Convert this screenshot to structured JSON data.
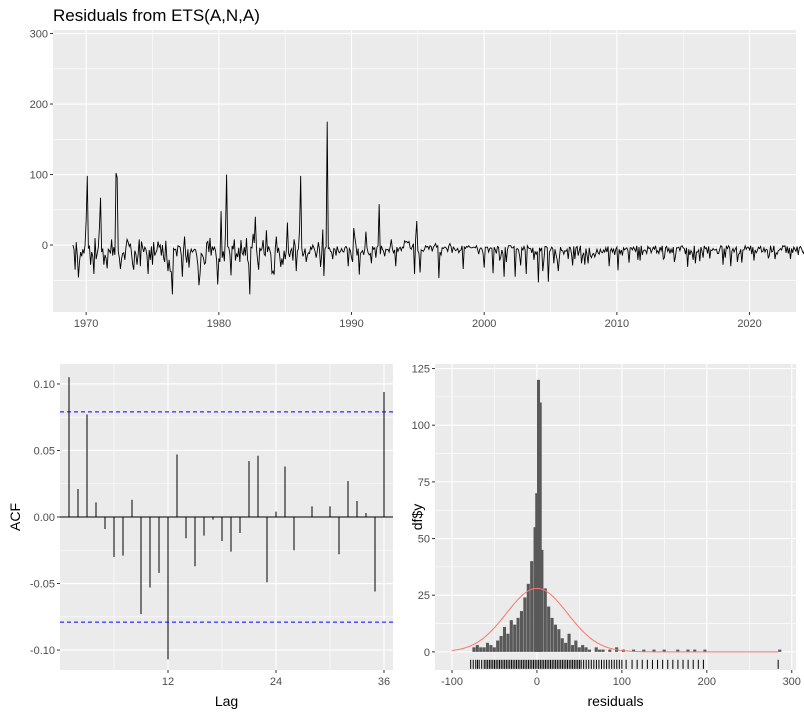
{
  "title": "Residuals from ETS(A,N,A)",
  "chart_data": [
    {
      "type": "line",
      "title": "Residuals from ETS(A,N,A)",
      "xlabel": "",
      "ylabel": "",
      "xlim": [
        1967.5,
        2023.5
      ],
      "ylim": [
        -95,
        305
      ],
      "xticks": [
        1970,
        1980,
        1990,
        2000,
        2010,
        2020
      ],
      "yticks": [
        0,
        100,
        200,
        300
      ],
      "grid": true,
      "x_start": 1969.0,
      "x_step": 0.0833333,
      "series": [
        {
          "values": [
            0,
            -6,
            -35,
            4,
            -15,
            -46,
            -23,
            -10,
            -16,
            -6,
            -12,
            0,
            35,
            98,
            -5,
            -2,
            -28,
            -10,
            -16,
            -41,
            10,
            -20,
            -12,
            -3,
            25,
            67,
            -10,
            -5,
            -28,
            -14,
            -19,
            -33,
            -6,
            -8,
            -12,
            8,
            -15,
            -3,
            -14,
            102,
            96,
            -9,
            -18,
            -34,
            -20,
            -12,
            -11,
            -21,
            -3,
            8,
            4,
            -2,
            2,
            -11,
            -27,
            -35,
            -8,
            -13,
            -28,
            -13,
            8,
            -30,
            5,
            -3,
            -10,
            -3,
            -6,
            -15,
            -41,
            -7,
            -21,
            -2,
            -28,
            4,
            -15,
            -11,
            -7,
            5,
            -3,
            0,
            -15,
            0,
            -18,
            -24,
            6,
            -19,
            -37,
            -21,
            -37,
            -38,
            -70,
            -5,
            -7,
            -6,
            -16,
            -1,
            -2,
            -3,
            -14,
            -45,
            -8,
            12,
            -15,
            -25,
            -6,
            -32,
            -12,
            -6,
            -10,
            -8,
            -6,
            -7,
            -15,
            -28,
            -57,
            -41,
            -12,
            -14,
            -18,
            -27,
            -25,
            3,
            5,
            -10,
            10,
            -15,
            -2,
            -7,
            -3,
            -8,
            -22,
            -56,
            -19,
            -24,
            48,
            -18,
            -9,
            -23,
            17,
            100,
            -2,
            -4,
            -13,
            -43,
            -1,
            -6,
            8,
            -22,
            -12,
            -17,
            -4,
            -24,
            7,
            -11,
            -14,
            -3,
            -15,
            10,
            -21,
            -27,
            -70,
            -3,
            -4,
            16,
            3,
            40,
            -4,
            -21,
            -35,
            -4,
            -8,
            -5,
            7,
            -13,
            -15,
            21,
            -10,
            -2,
            -7,
            -13,
            -40,
            -37,
            -42,
            -6,
            12,
            -11,
            -4,
            -15,
            -31,
            -19,
            -28,
            -8,
            -20,
            -8,
            32,
            -11,
            -17,
            -8,
            -5,
            -22,
            8,
            -1,
            -37,
            -9,
            -5,
            22,
            98,
            -4,
            -16,
            -12,
            -5,
            -24,
            -15,
            -11,
            -12,
            -3,
            -6,
            0,
            -4,
            -9,
            -18,
            -9,
            4,
            -6,
            -31,
            -15,
            22,
            -44,
            -5,
            -3,
            175,
            -5,
            -4,
            -9,
            -10,
            -20,
            -5,
            -6,
            -15,
            -2,
            -8,
            -11,
            -9,
            -5,
            -9,
            -10,
            -4,
            -2,
            -5,
            -30,
            -5,
            -8,
            -18,
            -24,
            24,
            11,
            0,
            -15,
            -5,
            -42,
            -12,
            -10,
            -8,
            -14,
            -6,
            19,
            -4,
            -11,
            -14,
            -12,
            -26,
            -2,
            -6,
            -4,
            -18,
            -3,
            -1,
            58,
            -13,
            -1,
            -6,
            -9,
            -16,
            -6,
            -7,
            -6,
            -10,
            -2,
            8,
            -6,
            -11,
            -7,
            -30,
            -3,
            -9,
            -5,
            -3,
            -8,
            -3,
            -4,
            6,
            4,
            5,
            3,
            5,
            -4,
            -6,
            -2,
            2,
            -41,
            9,
            34,
            -8,
            -12,
            -39,
            -7,
            -8,
            -9,
            -6,
            -1,
            -3,
            -2,
            -6,
            -1,
            -2,
            -9,
            -3,
            -1,
            2,
            -3,
            -1,
            -47,
            -10,
            -14,
            -4,
            -5,
            -3,
            -3,
            -5,
            -9,
            -1,
            2,
            -2,
            -11,
            -3,
            -5,
            -8,
            -7,
            -5,
            -11,
            -8,
            -7,
            -1,
            -34,
            -3,
            -5,
            -2,
            -3,
            -1,
            -3,
            -4,
            -4,
            -3,
            -3,
            -4,
            -1,
            -6,
            -13,
            -6,
            -4,
            -6,
            -12,
            -32,
            -3,
            -3,
            -3,
            -10,
            -5,
            -4,
            -5,
            -40,
            -3,
            -7,
            -12,
            -2,
            -3,
            -22,
            -17,
            -7,
            -13,
            -45,
            -3,
            -24,
            -7,
            -1,
            -1,
            -1,
            -4,
            -4,
            -2,
            -45,
            -6,
            -5,
            -7,
            -15,
            -29,
            -4,
            -7,
            -2,
            -7,
            -41,
            -1,
            -4,
            -5,
            -5,
            -11,
            -4,
            -21,
            -9,
            -13,
            -9,
            -53,
            -4,
            -8,
            -4,
            -37,
            -21,
            -2,
            -2,
            -4,
            -52,
            -10,
            -7,
            -3,
            -5,
            -26,
            -6,
            -14,
            -21,
            -37,
            -18,
            -3,
            -8,
            -8,
            -13,
            -8,
            -9,
            -6,
            -20,
            -3,
            -4,
            -13,
            -29,
            -2,
            -20,
            -4,
            -2,
            -15,
            -8,
            -1,
            -26,
            -15,
            -11,
            -28,
            -5,
            -14,
            -26,
            -4,
            -15,
            -18,
            -13,
            -12,
            -17,
            -12,
            -6,
            -11,
            -13,
            -6,
            -10,
            -11,
            -7,
            -10,
            -4,
            -10,
            -2,
            -30,
            -9,
            -5,
            -10,
            -5,
            -14,
            -6,
            -3,
            -36,
            -6,
            -12,
            -7,
            -15,
            -4,
            -7,
            -5,
            -4,
            -8,
            -25,
            -4,
            -4,
            -7,
            -3,
            -6,
            -9,
            -1,
            -21,
            -3,
            -22,
            -1,
            -14,
            -8,
            -7,
            -8,
            -12,
            -2,
            -5,
            -4,
            -11,
            -7,
            -3,
            -6,
            -1,
            -11,
            -8,
            -12,
            -3,
            -8,
            -1,
            -20,
            -18,
            -4,
            -2,
            -9,
            -5,
            -12,
            -6,
            -11,
            -3,
            -24,
            -16,
            -4,
            -4,
            -3,
            -8,
            -2,
            -1,
            -4,
            -5,
            -13,
            -4,
            -31,
            -6,
            -14,
            -8,
            -11,
            -21,
            -1,
            -26,
            -10,
            -10,
            -7,
            -23,
            -3,
            -9,
            -18,
            -1,
            -5,
            -4,
            -12,
            -2,
            -19,
            -7,
            -8,
            -5,
            -7,
            -7,
            -6,
            -12,
            -12,
            -6,
            -1,
            -2,
            -28,
            -5,
            -18,
            -2,
            -5,
            -1,
            -4,
            -30,
            -9,
            -5,
            -10,
            -6,
            -3,
            -24,
            -13,
            -12,
            -6,
            -25,
            -7,
            -7,
            -1,
            -6,
            -3,
            -3,
            -7,
            -1,
            -13,
            -3,
            -22,
            -7,
            -11,
            -8,
            -3,
            -5,
            -2,
            -10,
            -9,
            -4,
            -10,
            -6,
            -7,
            -19,
            -14,
            -1,
            -10,
            -9,
            -1,
            -20,
            -11,
            -13,
            -8,
            -7,
            -5,
            -7,
            -1,
            -2,
            -1,
            -11,
            -2,
            -12,
            -4,
            -20,
            -5,
            -11,
            -3,
            -6,
            -9,
            -2,
            -14,
            -4,
            -2,
            -5,
            -10,
            -12,
            -4,
            -3,
            -13,
            -1,
            -2,
            -14,
            -3,
            -3,
            -7,
            -14,
            -8,
            -20,
            -9,
            -5,
            -2,
            -9,
            -4,
            -7,
            -15,
            -3,
            -2,
            -7,
            -2,
            -3,
            -10,
            -14,
            -2,
            -5,
            -8,
            -5,
            -4,
            -4,
            -9,
            -10,
            -4,
            -2,
            -8,
            -3,
            -5,
            -16,
            -4,
            -3,
            -1,
            -4,
            -11,
            -4,
            -2
          ]
        }
      ]
    },
    {
      "type": "bar",
      "xlabel": "Lag",
      "ylabel": "ACF",
      "xlim": [
        0,
        37
      ],
      "ylim": [
        -0.115,
        0.115
      ],
      "xticks": [
        12,
        24,
        36
      ],
      "yticks": [
        -0.1,
        -0.05,
        0.0,
        0.05,
        0.1
      ],
      "conf_limit": 0.079,
      "grid": true,
      "lags": [
        1,
        2,
        3,
        4,
        5,
        6,
        7,
        8,
        9,
        10,
        11,
        12,
        13,
        14,
        15,
        16,
        17,
        18,
        19,
        20,
        21,
        22,
        23,
        24,
        25,
        26,
        27,
        28,
        29,
        30,
        31,
        32,
        33,
        34,
        35,
        36
      ],
      "values": [
        0.105,
        0.021,
        0.077,
        0.011,
        -0.009,
        -0.03,
        -0.029,
        0.013,
        -0.073,
        -0.053,
        -0.042,
        -0.107,
        0.047,
        -0.016,
        -0.037,
        -0.014,
        -0.002,
        -0.018,
        -0.026,
        -0.012,
        0.042,
        0.046,
        -0.049,
        0.004,
        0.038,
        -0.025,
        0.0,
        0.008,
        0.0,
        0.008,
        -0.028,
        0.027,
        0.012,
        0.003,
        -0.056,
        0.094
      ]
    },
    {
      "type": "bar",
      "xlabel": "residuals",
      "ylabel": "df$y",
      "xlim": [
        -120,
        305
      ],
      "ylim": [
        -8,
        127
      ],
      "xticks": [
        -100,
        0,
        100,
        200,
        300
      ],
      "yticks": [
        0,
        25,
        50,
        75,
        100,
        125
      ],
      "bin_width": 4,
      "grid": true,
      "bins": [
        [
          -76,
          2
        ],
        [
          -72,
          3
        ],
        [
          -68,
          2
        ],
        [
          -64,
          2
        ],
        [
          -60,
          4
        ],
        [
          -56,
          3
        ],
        [
          -52,
          2
        ],
        [
          -48,
          5
        ],
        [
          -44,
          7
        ],
        [
          -40,
          11
        ],
        [
          -36,
          8
        ],
        [
          -32,
          14
        ],
        [
          -28,
          12
        ],
        [
          -24,
          15
        ],
        [
          -20,
          18
        ],
        [
          -16,
          24
        ],
        [
          -12,
          30
        ],
        [
          -8,
          40
        ],
        [
          -4,
          55
        ],
        [
          -2,
          70
        ],
        [
          0,
          120
        ],
        [
          2,
          110
        ],
        [
          4,
          45
        ],
        [
          8,
          28
        ],
        [
          12,
          20
        ],
        [
          16,
          15
        ],
        [
          20,
          12
        ],
        [
          24,
          10
        ],
        [
          28,
          6
        ],
        [
          32,
          4
        ],
        [
          36,
          8
        ],
        [
          40,
          3
        ],
        [
          44,
          5
        ],
        [
          48,
          2
        ],
        [
          52,
          3
        ],
        [
          56,
          2
        ],
        [
          60,
          1
        ],
        [
          68,
          2
        ],
        [
          72,
          1
        ],
        [
          76,
          1
        ],
        [
          84,
          1
        ],
        [
          92,
          2
        ],
        [
          100,
          1
        ],
        [
          112,
          1
        ],
        [
          124,
          1
        ],
        [
          136,
          1
        ],
        [
          148,
          1
        ],
        [
          164,
          1
        ],
        [
          176,
          1
        ],
        [
          184,
          1
        ],
        [
          196,
          1
        ],
        [
          284,
          1
        ]
      ],
      "density_curve": {
        "name": "normal density",
        "color": "#f8766d",
        "mean": 0,
        "sd": 36,
        "peak": 28
      },
      "rug": [
        -78,
        -75,
        -72,
        -70,
        -68,
        -65,
        -62,
        -60,
        -58,
        -56,
        -54,
        -52,
        -50,
        -48,
        -46,
        -44,
        -42,
        -40,
        -38,
        -36,
        -34,
        -32,
        -30,
        -28,
        -26,
        -24,
        -22,
        -20,
        -18,
        -16,
        -14,
        -12,
        -10,
        -8,
        -6,
        -4,
        -2,
        0,
        2,
        4,
        6,
        8,
        10,
        12,
        14,
        16,
        18,
        20,
        22,
        24,
        26,
        28,
        30,
        32,
        34,
        36,
        38,
        40,
        42,
        44,
        46,
        48,
        50,
        52,
        55,
        58,
        61,
        64,
        67,
        70,
        73,
        76,
        79,
        82,
        85,
        88,
        91,
        94,
        97,
        100,
        105,
        112,
        118,
        124,
        130,
        136,
        142,
        148,
        154,
        160,
        166,
        172,
        178,
        184,
        190,
        196,
        284
      ]
    }
  ]
}
